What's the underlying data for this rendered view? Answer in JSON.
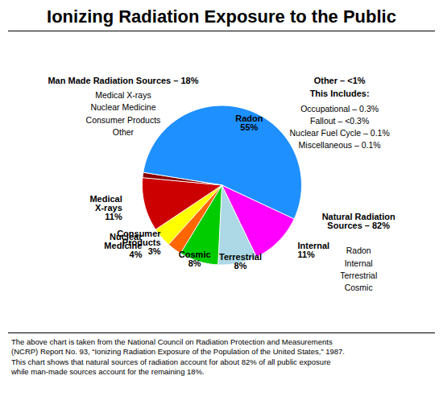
{
  "chart_data": {
    "type": "pie",
    "title": "Ionizing Radiation Exposure to the Public",
    "categories": [
      "Radon",
      "Internal",
      "Terrestrial",
      "Cosmic",
      "Consumer\nProducts",
      "Nuclear\nMedicine",
      "Medical\nX-rays",
      null
    ],
    "values": [
      55,
      11,
      8,
      8,
      3,
      4,
      11,
      1
    ],
    "value_labels": [
      "55%",
      "11%",
      "8%",
      "8%",
      "3%",
      "4%",
      "11%",
      null
    ],
    "data_labels": true,
    "colors": [
      "#1E90FF",
      "#FF00FF",
      "#ADD8E6",
      "#00CC00",
      "#FF6600",
      "#FFFF00",
      "#CC0000",
      "#8B0000"
    ],
    "annotations": [
      {
        "heading": [
          "Man Made Radiation Sources – 18%"
        ],
        "items": [
          "Medical X-rays",
          "Nuclear Medicine",
          "Consumer Products",
          "Other"
        ]
      },
      {
        "heading": [
          "Other – <1%",
          "This Includes:"
        ],
        "items": [
          "Occupational – 0.3%",
          "Fallout – <0.3%",
          "Nuclear Fuel Cycle – 0.1%",
          "Miscellaneous – 0.1%"
        ]
      },
      {
        "heading": [
          "Natural Radiation\nSources – 82%"
        ],
        "items": [
          "Radon",
          "Internal",
          "Terrestrial",
          "Cosmic"
        ]
      }
    ],
    "caption": [
      "The above chart is taken from the National Council on Radiation Protection and Measurements",
      "(NCRP) Report No. 93, “Ionizing Radiation Exposure of the Population of the United States,” 1987.",
      "This chart shows that natural sources of radiation account for about 82% of all public exposure",
      "while man-made sources account for the remaining 18%."
    ]
  }
}
